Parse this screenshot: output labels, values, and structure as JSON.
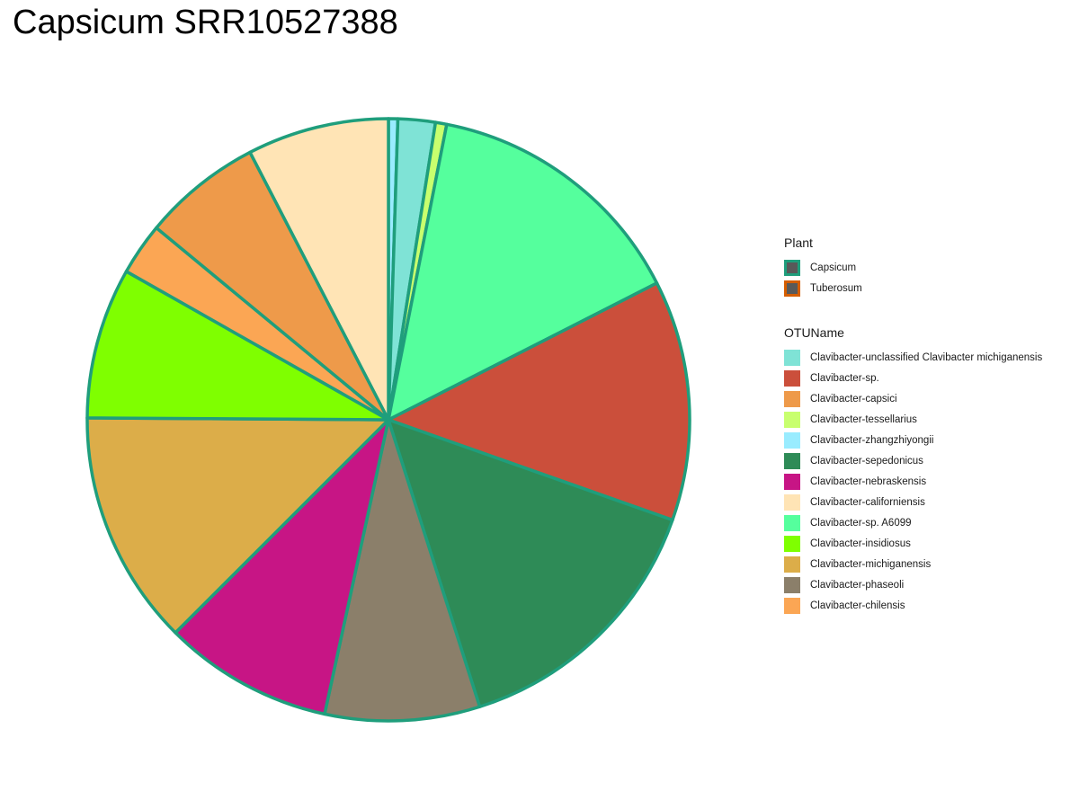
{
  "chart_data": {
    "type": "pie",
    "title": "Capsicum SRR10527388",
    "slice_border_color": "#1f9e7c",
    "slices": [
      {
        "label": "Clavibacter-zhangzhiyongii",
        "value": 0.5,
        "color": "#99ecff"
      },
      {
        "label": "Clavibacter-unclassified Clavibacter michiganensis",
        "value": 2.0,
        "color": "#7fe3d6"
      },
      {
        "label": "Clavibacter-tessellarius",
        "value": 0.6,
        "color": "#c8ff6e"
      },
      {
        "label": "Clavibacter-sp. A6099",
        "value": 14.4,
        "color": "#55ff9d"
      },
      {
        "label": "Clavibacter-sp.",
        "value": 12.9,
        "color": "#cb4f3b"
      },
      {
        "label": "Clavibacter-sepedonicus",
        "value": 14.7,
        "color": "#2e8b57"
      },
      {
        "label": "Clavibacter-phaseoli",
        "value": 8.3,
        "color": "#8b7f6a"
      },
      {
        "label": "Clavibacter-nebraskensis",
        "value": 9.1,
        "color": "#c71585"
      },
      {
        "label": "Clavibacter-michiganensis",
        "value": 12.6,
        "color": "#dcad49"
      },
      {
        "label": "Clavibacter-insidiosus",
        "value": 8.1,
        "color": "#7fff00"
      },
      {
        "label": "Clavibacter-chilensis",
        "value": 2.8,
        "color": "#fba654"
      },
      {
        "label": "Clavibacter-capsici",
        "value": 6.4,
        "color": "#ee9a4a"
      },
      {
        "label": "Clavibacter-californiensis",
        "value": 7.6,
        "color": "#ffe4b5"
      }
    ]
  },
  "legend": {
    "plant": {
      "title": "Plant",
      "items": [
        {
          "label": "Capsicum",
          "border": "#1f9e7c"
        },
        {
          "label": "Tuberosum",
          "border": "#d55e00"
        }
      ]
    },
    "otu": {
      "title": "OTUName",
      "items": [
        {
          "label": "Clavibacter-unclassified Clavibacter michiganensis",
          "color": "#7fe3d6"
        },
        {
          "label": "Clavibacter-sp.",
          "color": "#cb4f3b"
        },
        {
          "label": "Clavibacter-capsici",
          "color": "#ee9a4a"
        },
        {
          "label": "Clavibacter-tessellarius",
          "color": "#c8ff6e"
        },
        {
          "label": "Clavibacter-zhangzhiyongii",
          "color": "#99ecff"
        },
        {
          "label": "Clavibacter-sepedonicus",
          "color": "#2e8b57"
        },
        {
          "label": "Clavibacter-nebraskensis",
          "color": "#c71585"
        },
        {
          "label": "Clavibacter-californiensis",
          "color": "#ffe4b5"
        },
        {
          "label": "Clavibacter-sp. A6099",
          "color": "#55ff9d"
        },
        {
          "label": "Clavibacter-insidiosus",
          "color": "#7fff00"
        },
        {
          "label": "Clavibacter-michiganensis",
          "color": "#dcad49"
        },
        {
          "label": "Clavibacter-phaseoli",
          "color": "#8b7f6a"
        },
        {
          "label": "Clavibacter-chilensis",
          "color": "#fba654"
        }
      ]
    }
  }
}
